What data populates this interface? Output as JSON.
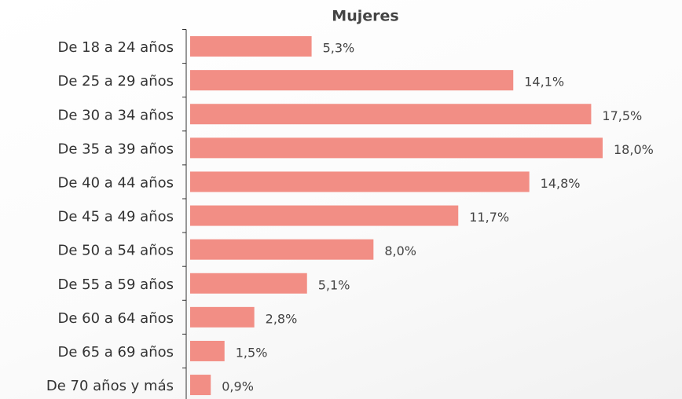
{
  "chart_data": {
    "type": "bar",
    "orientation": "horizontal",
    "title": "Mujeres",
    "categories": [
      "De 18 a 24 años",
      "De 25 a 29 años",
      "De 30 a 34 años",
      "De 35 a 39 años",
      "De 40 a 44 años",
      "De 45 a 49 años",
      "De 50 a 54 años",
      "De 55 a 59 años",
      "De 60 a 64 años",
      "De 65 a 69 años",
      "De 70 años y más"
    ],
    "values": [
      5.3,
      14.1,
      17.5,
      18.0,
      14.8,
      11.7,
      8.0,
      5.1,
      2.8,
      1.5,
      0.9
    ],
    "value_labels": [
      "5,3%",
      "14,1%",
      "17,5%",
      "18,0%",
      "14,8%",
      "11,7%",
      "8,0%",
      "5,1%",
      "2,8%",
      "1,5%",
      "0,9%"
    ],
    "color": "#f28e85"
  }
}
